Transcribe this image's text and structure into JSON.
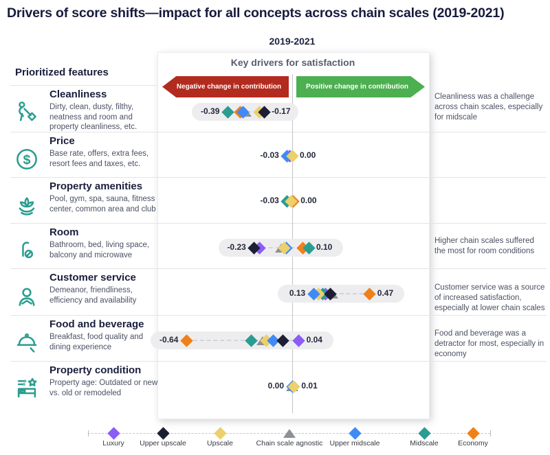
{
  "title": "Drivers of score shifts—impact for all concepts across chain scales (2019-2021)",
  "period_label": "2019-2021",
  "left_panel": {
    "heading": "Prioritized features",
    "features": [
      {
        "name": "Cleanliness",
        "description": "Dirty, clean, dusty, filthy, neatness and room and property cleanliness, etc.",
        "icon": "person-mopping-icon"
      },
      {
        "name": "Price",
        "description": "Base rate, offers, extra fees, resort fees and taxes, etc.",
        "icon": "dollar-circle-icon"
      },
      {
        "name": "Property amenities",
        "description": "Pool, gym, spa, sauna, fitness center, common area and club",
        "icon": "lotus-icon"
      },
      {
        "name": "Room",
        "description": "Bathroom, bed, living space, balcony and microwave",
        "icon": "door-hanger-icon"
      },
      {
        "name": "Customer service",
        "description": "Demeanor, friendliness, efficiency and availability",
        "icon": "person-icon"
      },
      {
        "name": "Food and beverage",
        "description": "Breakfast, food quality and dining experience",
        "icon": "cloche-icon"
      },
      {
        "name": "Property condition",
        "description": "Property age: Outdated or new vs. old or remodeled",
        "icon": "bed-star-icon"
      }
    ]
  },
  "chart_panel": {
    "heading": "Key drivers for satisfaction",
    "negative_label": "Negative change in contribution",
    "positive_label": "Positive change in contribution",
    "negative_color": "#b32b1f",
    "positive_color": "#4caf50"
  },
  "annotations": [
    {
      "row": "Cleanliness",
      "text": "Cleanliness was a challenge across chain scales, especially for midscale"
    },
    {
      "row": "Room",
      "text": "Higher chain scales suffered the most for room conditions"
    },
    {
      "row": "Customer service",
      "text": "Customer service was a source of increased satisfaction, especially at lower chain scales"
    },
    {
      "row": "Food and beverage",
      "text": "Food and beverage was a detractor for most, especially in economy"
    }
  ],
  "legend": {
    "items": [
      {
        "label": "Luxury",
        "color": "#8b5cf6",
        "shape": "diamond"
      },
      {
        "label": "Upper upscale",
        "color": "#1c1f33",
        "shape": "diamond"
      },
      {
        "label": "Upscale",
        "color": "#ecd06c",
        "shape": "diamond"
      },
      {
        "label": "Chain scale agnostic",
        "color": "#8e9096",
        "shape": "triangle"
      },
      {
        "label": "Upper midscale",
        "color": "#3f8af6",
        "shape": "diamond"
      },
      {
        "label": "Midscale",
        "color": "#2a9d92",
        "shape": "diamond"
      },
      {
        "label": "Economy",
        "color": "#f08018",
        "shape": "diamond"
      }
    ]
  },
  "chart_data": {
    "type": "scatter",
    "subtype": "horizontal-dot-plot",
    "title": "Key drivers for satisfaction",
    "x_axis": {
      "zero_line": 0,
      "implied_range": [
        -0.7,
        0.55
      ],
      "grid": false
    },
    "legend_position": "bottom",
    "rows": [
      {
        "feature": "Cleanliness",
        "min_label": "-0.39",
        "max_label": "-0.17",
        "pill": true,
        "markers": [
          {
            "scale": "Chain scale agnostic",
            "value": -0.285
          },
          {
            "scale": "Economy",
            "value": -0.315
          },
          {
            "scale": "Upper midscale",
            "value": -0.3
          },
          {
            "scale": "Midscale",
            "value": -0.39
          },
          {
            "scale": "Upscale",
            "value": -0.2
          },
          {
            "scale": "Upper upscale",
            "value": -0.17
          }
        ]
      },
      {
        "feature": "Price",
        "min_label": "-0.03",
        "max_label": "0.00",
        "pill": false,
        "markers": [
          {
            "scale": "Luxury",
            "value": -0.015
          },
          {
            "scale": "Upper midscale",
            "value": -0.03
          },
          {
            "scale": "Upscale",
            "value": 0.0
          }
        ]
      },
      {
        "feature": "Property amenities",
        "min_label": "-0.03",
        "max_label": "0.00",
        "pill": false,
        "markers": [
          {
            "scale": "Economy",
            "value": 0.005
          },
          {
            "scale": "Midscale",
            "value": -0.03
          },
          {
            "scale": "Upscale",
            "value": -0.005
          }
        ]
      },
      {
        "feature": "Room",
        "min_label": "-0.23",
        "max_label": "0.10",
        "pill": true,
        "markers": [
          {
            "scale": "Chain scale agnostic",
            "value": -0.065
          },
          {
            "scale": "Upper midscale",
            "value": -0.035
          },
          {
            "scale": "Upscale",
            "value": -0.05
          },
          {
            "scale": "Luxury",
            "value": -0.2
          },
          {
            "scale": "Upper upscale",
            "value": -0.23
          },
          {
            "scale": "Economy",
            "value": 0.065
          },
          {
            "scale": "Midscale",
            "value": 0.1
          }
        ]
      },
      {
        "feature": "Customer service",
        "min_label": "0.13",
        "max_label": "0.47",
        "pill": true,
        "markers": [
          {
            "scale": "Chain scale agnostic",
            "value": 0.24
          },
          {
            "scale": "Luxury",
            "value": 0.2
          },
          {
            "scale": "Midscale",
            "value": 0.185
          },
          {
            "scale": "Upscale",
            "value": 0.16
          },
          {
            "scale": "Upper midscale",
            "value": 0.13
          },
          {
            "scale": "Upper upscale",
            "value": 0.23
          },
          {
            "scale": "Economy",
            "value": 0.47
          }
        ]
      },
      {
        "feature": "Food and beverage",
        "min_label": "-0.64",
        "max_label": "0.04",
        "pill": true,
        "markers": [
          {
            "scale": "Chain scale agnostic",
            "value": -0.18
          },
          {
            "scale": "Upscale",
            "value": -0.155
          },
          {
            "scale": "Upper midscale",
            "value": -0.115
          },
          {
            "scale": "Midscale",
            "value": -0.25
          },
          {
            "scale": "Upper upscale",
            "value": -0.055
          },
          {
            "scale": "Luxury",
            "value": 0.04
          },
          {
            "scale": "Economy",
            "value": -0.64
          }
        ]
      },
      {
        "feature": "Property condition",
        "min_label": "0.00",
        "max_label": "0.01",
        "pill": false,
        "markers": [
          {
            "scale": "Chain scale agnostic",
            "value": 0.0
          },
          {
            "scale": "Upper midscale",
            "value": 0.0
          },
          {
            "scale": "Upscale",
            "value": 0.01
          }
        ]
      }
    ]
  }
}
